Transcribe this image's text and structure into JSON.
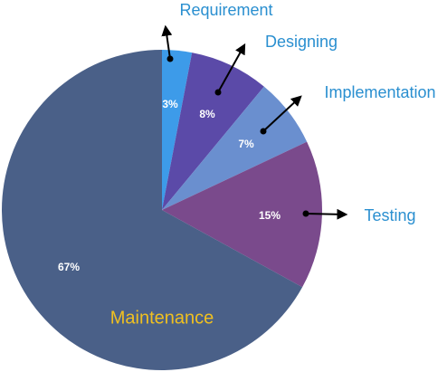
{
  "chart_data": {
    "type": "pie",
    "categories": [
      "Requirement",
      "Designing",
      "Implementation",
      "Testing",
      "Maintenance"
    ],
    "values": [
      3,
      8,
      7,
      15,
      67
    ],
    "value_labels": [
      "3%",
      "8%",
      "7%",
      "15%",
      "67%"
    ],
    "colors": [
      "#3d9be9",
      "#5b4aa8",
      "#6a8fcf",
      "#7a4a8c",
      "#4a6088"
    ]
  }
}
